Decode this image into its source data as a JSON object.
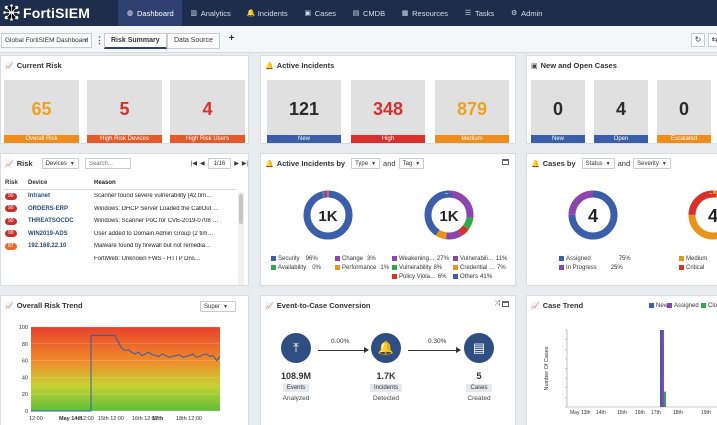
{
  "app": {
    "name": "FortiSIEM"
  },
  "nav": [
    {
      "label": "Dashboard",
      "icon": "dashboard-icon",
      "glyph": "◍",
      "active": true
    },
    {
      "label": "Analytics",
      "icon": "analytics-icon",
      "glyph": "▥"
    },
    {
      "label": "Incidents",
      "icon": "bell-icon",
      "glyph": "🔔"
    },
    {
      "label": "Cases",
      "icon": "briefcase-icon",
      "glyph": "▣"
    },
    {
      "label": "CMDB",
      "icon": "database-icon",
      "glyph": "▤"
    },
    {
      "label": "Resources",
      "icon": "resources-icon",
      "glyph": "▦"
    },
    {
      "label": "Tasks",
      "icon": "tasks-icon",
      "glyph": "☰"
    },
    {
      "label": "Admin",
      "icon": "gear-icon",
      "glyph": "⚙"
    }
  ],
  "toolbar": {
    "dashboard_select": "Global FortiSIEM Dashboard",
    "tab_risk_summary": "Risk Summary",
    "tab_data_source": "Data Source",
    "add_glyph": "+",
    "kebab_glyph": "⋮",
    "refresh_glyph": "↻",
    "more_glyph": "⇆"
  },
  "current_risk": {
    "title": "Current Risk",
    "tiles": [
      {
        "value": "65",
        "label": "Overall Risk",
        "color": "#f0a020",
        "bar": "#ef8c1a"
      },
      {
        "value": "5",
        "label": "High Risk Devices",
        "color": "#d9302c",
        "bar": "#e65a2a"
      },
      {
        "value": "4",
        "label": "High Risk Users",
        "color": "#d9302c",
        "bar": "#e65a2a"
      }
    ]
  },
  "active_incidents": {
    "title": "Active Incidents",
    "tiles": [
      {
        "value": "121",
        "label": "New",
        "color": "#2b2b2b",
        "bar": "#3a5ea8"
      },
      {
        "value": "348",
        "label": "High",
        "color": "#d9302c",
        "bar": "#d9302c"
      },
      {
        "value": "879",
        "label": "Medium",
        "color": "#f0a020",
        "bar": "#ef8c1a"
      }
    ]
  },
  "new_open_cases": {
    "title": "New and Open Cases",
    "tiles": [
      {
        "value": "0",
        "label": "New",
        "color": "#2b2b2b",
        "bar": "#3a5ea8"
      },
      {
        "value": "4",
        "label": "Open",
        "color": "#2b2b2b",
        "bar": "#3a5ea8"
      },
      {
        "value": "0",
        "label": "Escalated",
        "color": "#2b2b2b",
        "bar": "#ef8c1a"
      }
    ]
  },
  "risk": {
    "title": "Risk",
    "filter_select": "Devices",
    "search_placeholder": "Search...",
    "pager": "1/16",
    "pager_first": "|◀",
    "pager_prev": "◀",
    "pager_next": "▶",
    "pager_last": "▶|",
    "columns": [
      "Risk",
      "Device",
      "Reason"
    ],
    "rows": [
      {
        "risk": "90",
        "device": "Intranet",
        "reason": "Scanner found severe vulnerability (42 tim…",
        "level": "red"
      },
      {
        "risk": "90",
        "device": "ORDERS-ERP",
        "reason": "Windows: DHCP Server Loaded the CallOut …",
        "level": "red"
      },
      {
        "risk": "90",
        "device": "THREATSOCDC",
        "reason": "Windows: Scanner PoC for CVE-2019-0708 …",
        "level": "red"
      },
      {
        "risk": "90",
        "device": "WIN2019-ADS",
        "reason": "User added to Domain Admin Group (2 tim…",
        "level": "red"
      },
      {
        "risk": "87",
        "device": "192.168.22.10",
        "reason": "Malware found by firewall but not remedia…",
        "level": "orange"
      },
      {
        "risk": "",
        "device": "",
        "reason": "FortiWeb: Unknown FWS - HTTP Dns…",
        "level": "orange"
      }
    ]
  },
  "incidents_by": {
    "title": "Active Incidents by",
    "select1": "Type",
    "and_label": "and",
    "select2": "Tag",
    "donut1_center": "1K",
    "donut2_center": "1K",
    "donut1_legend": [
      {
        "name": "Security",
        "pct": "96%",
        "color": "#3a5ea8"
      },
      {
        "name": "Availability",
        "pct": "0%",
        "color": "#2eaa4a"
      },
      {
        "name": "Change",
        "pct": "3%",
        "color": "#8e44ad"
      },
      {
        "name": "Performance",
        "pct": "1%",
        "color": "#e8941a"
      }
    ],
    "donut2_legend": [
      {
        "name": "Weakening…",
        "pct": "27%",
        "color": "#8e44ad"
      },
      {
        "name": "Vulnerability",
        "pct": "8%",
        "color": "#2eaa4a"
      },
      {
        "name": "Policy Viola…",
        "pct": "6%",
        "color": "#d9302c"
      },
      {
        "name": "Vulnerabili…",
        "pct": "11%",
        "color": "#8e44ad"
      },
      {
        "name": "Credential …",
        "pct": "7%",
        "color": "#e8941a"
      },
      {
        "name": "Others",
        "pct": "41%",
        "color": "#3a5ea8"
      }
    ]
  },
  "cases_by": {
    "title": "Cases by",
    "select1": "Status",
    "and_label": "and",
    "select2": "Severity",
    "donut1_center": "4",
    "donut2_center": "4",
    "legend": [
      {
        "name": "Assigned",
        "pct": "75%",
        "color": "#3a5ea8"
      },
      {
        "name": "In Progress",
        "pct": "25%",
        "color": "#8e44ad"
      },
      {
        "name": "Medium",
        "pct": "",
        "color": "#e8941a"
      },
      {
        "name": "Critical",
        "pct": "",
        "color": "#d9302c"
      }
    ]
  },
  "overall_trend": {
    "title": "Overall Risk Trend",
    "select": "Super"
  },
  "etc": {
    "title": "Event-to-Case Conversion",
    "pct1": "0.00%",
    "pct2": "0.30%",
    "nodes": [
      {
        "value": "108.9M",
        "tag": "Events",
        "sub": "Analyzed",
        "icon": "upload-icon",
        "glyph": "⤒"
      },
      {
        "value": "1.7K",
        "tag": "Incidents",
        "sub": "Detected",
        "icon": "bell-icon",
        "glyph": "🔔"
      },
      {
        "value": "5",
        "tag": "Cases",
        "sub": "Created",
        "icon": "archive-icon",
        "glyph": "▤"
      }
    ]
  },
  "case_trend": {
    "title": "Case Trend",
    "legend": [
      {
        "name": "New",
        "color": "#3a5ea8"
      },
      {
        "name": "Assigned",
        "color": "#8e44ad"
      },
      {
        "name": "Clo",
        "color": "#2eaa4a"
      }
    ]
  },
  "chart_data": [
    {
      "type": "area",
      "title": "",
      "xlabel": "",
      "ylabel": "",
      "ylim": [
        0,
        100
      ],
      "yticks": [
        "0",
        "20",
        "40",
        "60",
        "80",
        "100"
      ],
      "xticks": [
        "12:00",
        "May 14th",
        "12:00",
        "15th 12:00",
        "16th 12:00",
        "17th",
        "18th 12:00"
      ],
      "series": [
        {
          "values": [
            0,
            0,
            0,
            0,
            0,
            0,
            0,
            0,
            0,
            0,
            0,
            0,
            0,
            0,
            0,
            0,
            0,
            0,
            0,
            0,
            0,
            0,
            0,
            0,
            90,
            90,
            90,
            90,
            90,
            90,
            90,
            90,
            82,
            75,
            72,
            73,
            70,
            68,
            70,
            66,
            68,
            70,
            67,
            66,
            65,
            68,
            66,
            64,
            65,
            66,
            67,
            64,
            65,
            66,
            68,
            64,
            65,
            67,
            68,
            65,
            66,
            60,
            65
          ]
        }
      ]
    },
    {
      "type": "bar",
      "title": "",
      "ylabel": "Number Of Cases",
      "categories": [
        "May 13th",
        "14th",
        "15th",
        "16th",
        "17th",
        "18th",
        "19th"
      ],
      "series": [
        {
          "name": "New",
          "values": [
            0,
            0,
            0,
            0,
            0,
            0,
            5
          ]
        },
        {
          "name": "Assigned",
          "values": [
            0,
            0,
            0,
            0,
            0,
            0,
            5
          ]
        },
        {
          "name": "Clo",
          "values": [
            0,
            0,
            0,
            0,
            0,
            0,
            1
          ]
        }
      ],
      "ylim": [
        0,
        5
      ]
    }
  ]
}
